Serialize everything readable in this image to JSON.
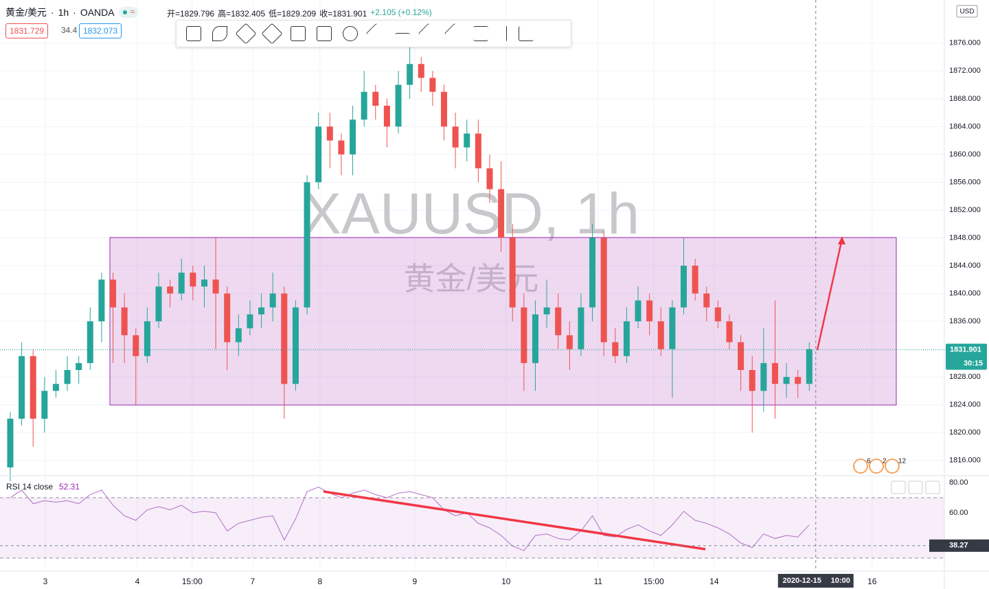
{
  "ui": {
    "symbol": "黄金/美元",
    "interval": "1h",
    "exchange": "OANDA",
    "ohlc": [
      "开=1829.796",
      "高=1832.405",
      "低=1829.209",
      "收=1831.901",
      "+2.105 (+0.12%)"
    ],
    "bid": "1831.729",
    "spread": "34.4",
    "ask": "1832.073",
    "currency": "USD",
    "watermark": "XAUUSD, 1h",
    "watermark_sub": "黄金/美元",
    "events": [
      "6",
      "2",
      "12"
    ]
  },
  "chart_data": [
    {
      "type": "candlestick",
      "up_color": "#26a69a",
      "down_color": "#ef5350",
      "x": [
        0,
        3,
        6,
        9,
        12,
        15,
        18,
        21,
        24,
        27,
        30,
        33,
        36,
        39,
        42,
        45,
        48,
        51,
        54,
        57,
        60,
        63,
        66,
        69,
        72,
        75,
        78,
        81,
        84,
        87,
        90,
        93,
        96,
        99,
        102,
        105,
        108,
        111,
        114,
        117,
        120,
        123,
        126,
        129,
        132,
        135,
        138,
        141,
        144,
        147,
        150,
        153,
        156,
        159,
        162,
        165,
        168,
        171,
        174,
        177,
        180,
        183,
        186,
        189,
        192,
        195,
        198,
        201,
        204,
        207,
        210
      ],
      "open": [
        1815,
        1822,
        1831,
        1822,
        1826,
        1827,
        1829,
        1830,
        1836,
        1842,
        1838,
        1834,
        1831,
        1836,
        1841,
        1840,
        1843,
        1841,
        1842,
        1840,
        1833,
        1835,
        1837,
        1838,
        1840,
        1827,
        1838,
        1856,
        1864,
        1862,
        1860,
        1865,
        1869,
        1867,
        1864,
        1870,
        1873,
        1871,
        1869,
        1864,
        1861,
        1863,
        1858,
        1855,
        1848,
        1838,
        1830,
        1837,
        1838,
        1834,
        1832,
        1838,
        1848,
        1833,
        1831,
        1836,
        1839,
        1836,
        1832,
        1838,
        1844,
        1840,
        1838,
        1836,
        1833,
        1829,
        1826,
        1830,
        1827,
        1828,
        1827
      ],
      "high": [
        1823,
        1833,
        1832,
        1828,
        1829,
        1831,
        1831,
        1838,
        1843,
        1843,
        1840,
        1835,
        1838,
        1843,
        1842,
        1845,
        1844,
        1844,
        1848,
        1841,
        1837,
        1839,
        1840,
        1843,
        1841,
        1839,
        1857,
        1866,
        1866,
        1863,
        1867,
        1872,
        1870,
        1868,
        1872,
        1876,
        1874,
        1872,
        1870,
        1866,
        1865,
        1865,
        1860,
        1859,
        1850,
        1840,
        1839,
        1842,
        1840,
        1836,
        1840,
        1850,
        1849,
        1835,
        1838,
        1841,
        1840,
        1838,
        1839,
        1848,
        1845,
        1841,
        1839,
        1837,
        1834,
        1831,
        1835,
        1839,
        1830,
        1829,
        1833
      ],
      "low": [
        1813,
        1821,
        1818,
        1820,
        1825,
        1826,
        1827,
        1829,
        1833,
        1830,
        1830,
        1824,
        1830,
        1835,
        1838,
        1839,
        1839,
        1838,
        1832,
        1829,
        1831,
        1834,
        1835,
        1836,
        1822,
        1826,
        1837,
        1855,
        1858,
        1857,
        1857,
        1864,
        1865,
        1861,
        1863,
        1868,
        1869,
        1867,
        1862,
        1858,
        1859,
        1856,
        1853,
        1846,
        1836,
        1826,
        1826,
        1835,
        1832,
        1829,
        1831,
        1836,
        1831,
        1830,
        1830,
        1835,
        1834,
        1831,
        1825,
        1837,
        1839,
        1836,
        1835,
        1832,
        1826,
        1820,
        1823,
        1822,
        1825,
        1825,
        1826
      ],
      "close": [
        1822,
        1831,
        1822,
        1826,
        1827,
        1829,
        1830,
        1836,
        1842,
        1838,
        1834,
        1831,
        1836,
        1841,
        1840,
        1843,
        1841,
        1842,
        1840,
        1833,
        1835,
        1837,
        1838,
        1840,
        1827,
        1838,
        1856,
        1864,
        1862,
        1860,
        1865,
        1869,
        1867,
        1864,
        1870,
        1873,
        1871,
        1869,
        1864,
        1861,
        1863,
        1858,
        1855,
        1848,
        1838,
        1830,
        1837,
        1838,
        1834,
        1832,
        1838,
        1848,
        1833,
        1831,
        1836,
        1839,
        1836,
        1832,
        1838,
        1844,
        1840,
        1838,
        1836,
        1833,
        1829,
        1826,
        1830,
        1827,
        1828,
        1827,
        1832
      ],
      "xlim": [
        -2.7,
        245.5
      ],
      "xticks": [
        {
          "value": 9.2,
          "label": "3"
        },
        {
          "value": 33.4,
          "label": "4"
        },
        {
          "value": 47.8,
          "label": "15:00"
        },
        {
          "value": 63.7,
          "label": "7"
        },
        {
          "value": 81.4,
          "label": "8"
        },
        {
          "value": 106.3,
          "label": "9"
        },
        {
          "value": 130.3,
          "label": "10"
        },
        {
          "value": 154.5,
          "label": "11"
        },
        {
          "value": 169.1,
          "label": "15:00"
        },
        {
          "value": 185,
          "label": "14"
        },
        {
          "value": 226.5,
          "label": "16"
        }
      ],
      "ylim": [
        1813.8,
        1882.2
      ],
      "yticks": [
        {
          "value": 1816,
          "label": "1816.000"
        },
        {
          "value": 1820,
          "label": "1820.000"
        },
        {
          "value": 1824,
          "label": "1824.000"
        },
        {
          "value": 1828,
          "label": "1828.000"
        },
        {
          "value": 1832,
          "label": "1832.000"
        },
        {
          "value": 1836,
          "label": "1836.000"
        },
        {
          "value": 1840,
          "label": "1840.000"
        },
        {
          "value": 1844,
          "label": "1844.000"
        },
        {
          "value": 1848,
          "label": "1848.000"
        },
        {
          "value": 1852,
          "label": "1852.000"
        },
        {
          "value": 1856,
          "label": "1856.000"
        },
        {
          "value": 1860,
          "label": "1860.000"
        },
        {
          "value": 1864,
          "label": "1864.000"
        },
        {
          "value": 1868,
          "label": "1868.000"
        },
        {
          "value": 1872,
          "label": "1872.000"
        },
        {
          "value": 1876,
          "label": "1876.000"
        }
      ],
      "grid": true,
      "last_price": 1831.901,
      "countdown": "30:15",
      "crosshair": {
        "x": 211.7,
        "date": "2020-12-15",
        "time": "10:00"
      }
    },
    {
      "type": "line",
      "title": "RSI 14 close",
      "current": 52.31,
      "color": "#b06fc4",
      "values": [
        70,
        75,
        66,
        68,
        67,
        68,
        66,
        72,
        75,
        65,
        58,
        55,
        62,
        64,
        62,
        65,
        60,
        61,
        60,
        48,
        53,
        55,
        57,
        58,
        42,
        56,
        74,
        77,
        73,
        70,
        73,
        75,
        72,
        70,
        73,
        74,
        72,
        70,
        62,
        58,
        60,
        53,
        50,
        45,
        38,
        35,
        45,
        46,
        43,
        42,
        48,
        58,
        45,
        44,
        49,
        52,
        48,
        45,
        52,
        61,
        55,
        53,
        50,
        46,
        40,
        37,
        46,
        43,
        45,
        44,
        52
      ],
      "ylim": [
        21.4,
        84.5
      ],
      "yticks": [
        {
          "value": 80,
          "label": "80.00"
        },
        {
          "value": 60,
          "label": "60.00"
        }
      ],
      "levels": [
        70,
        30
      ],
      "crosshair_value": 38.27
    }
  ]
}
